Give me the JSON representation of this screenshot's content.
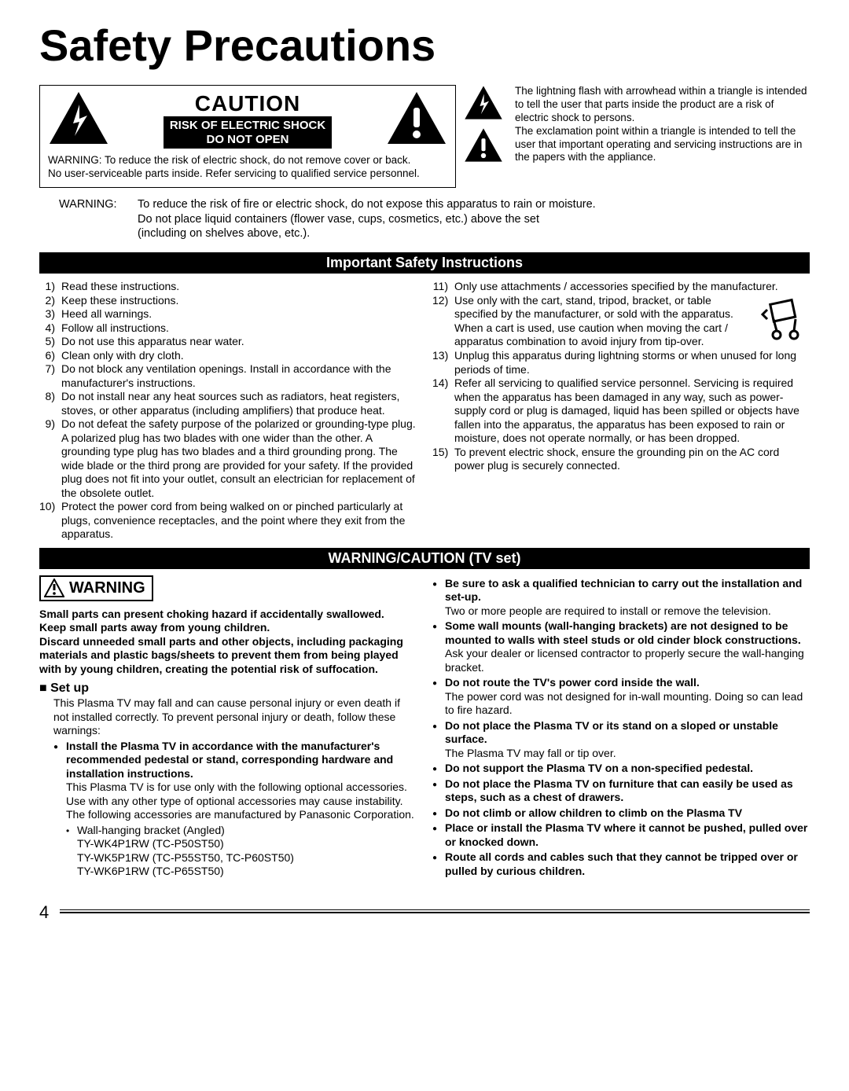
{
  "title": "Safety Precautions",
  "caution": {
    "heading": "CAUTION",
    "bar_lines": [
      "RISK OF ELECTRIC SHOCK",
      "DO NOT OPEN"
    ],
    "note": "WARNING: To reduce the risk of electric shock, do not remove cover or back.\nNo user-serviceable parts inside. Refer servicing to qualified service personnel."
  },
  "symbol_texts": {
    "bolt": "The lightning flash with arrowhead within a triangle is intended to tell the user that parts inside the product are a risk of electric shock to persons.",
    "excl": "The exclamation point within a triangle is intended to tell the user that important operating and servicing instructions are in the papers with the appliance."
  },
  "warning_label": "WARNING:",
  "warning_body": "To reduce the risk of fire or electric shock, do not expose this apparatus to rain or moisture.\nDo not place liquid containers (flower vase, cups, cosmetics, etc.) above the set\n(including on shelves above, etc.).",
  "safety_header": "Important Safety Instructions",
  "safety_left": [
    "Read these instructions.",
    "Keep these instructions.",
    "Heed all warnings.",
    "Follow all instructions.",
    "Do not use this apparatus near water.",
    "Clean only with dry cloth.",
    "Do not block any ventilation openings. Install in accordance with the manufacturer's instructions.",
    "Do not install near any heat sources such as radiators, heat registers, stoves, or other apparatus (including amplifiers) that produce heat.",
    "Do not defeat the safety purpose of the polarized or grounding-type plug. A polarized plug has two blades with one wider than the other. A grounding type plug has two blades and a third grounding prong. The wide blade or the third prong are provided for your safety. If the provided plug does not fit into your outlet, consult an electrician for replacement of the obsolete outlet.",
    "Protect the power cord from being walked on or pinched particularly at plugs, convenience receptacles, and the point where they exit from the apparatus."
  ],
  "safety_right": [
    "Only use attachments / accessories specified by the manufacturer.",
    "Use only with the cart, stand, tripod, bracket, or table specified by the manufacturer, or sold with the apparatus. When a cart is used, use caution when moving the cart / apparatus combination to avoid injury from tip-over.",
    "Unplug this apparatus during lightning storms or when unused for long periods of time.",
    "Refer all servicing to qualified service personnel. Servicing is required when the apparatus has been damaged in any way, such as power-supply cord or plug is damaged, liquid has been spilled or objects have fallen into the apparatus, the apparatus has been exposed to rain or moisture, does not operate normally, or has been dropped.",
    "To prevent electric shock, ensure the grounding pin on the AC cord power plug is securely connected."
  ],
  "tv_header": "WARNING/CAUTION (TV set)",
  "tv_warning_box": "WARNING",
  "choking": "Small parts can present choking hazard if accidentally swallowed.\nKeep small parts away from young children.\nDiscard unneeded small parts and other objects, including packaging materials and plastic bags/sheets to prevent them from being played with by young children, creating the potential risk of suffocation.",
  "setup_heading": "■ Set up",
  "setup_intro": "This Plasma TV may fall and can cause personal injury or even death if not installed correctly. To prevent personal injury or death, follow these warnings:",
  "left_bullets": [
    {
      "title": "Install the Plasma TV in accordance with the manufacturer's recommended pedestal or stand, corresponding hardware and installation instructions.",
      "body": "This Plasma TV is for use only with the following optional accessories. Use with any other type of optional accessories may cause instability. The following accessories are manufactured by Panasonic Corporation.",
      "sub": [
        "Wall-hanging bracket (Angled)",
        "TY-WK4P1RW (TC-P50ST50)",
        "TY-WK5P1RW (TC-P55ST50, TC-P60ST50)",
        "TY-WK6P1RW (TC-P65ST50)"
      ]
    }
  ],
  "right_bullets": [
    {
      "title": "Be sure to ask a qualified technician to carry out the installation and set-up.",
      "body": "Two or more people are required to install or remove the television."
    },
    {
      "title": "Some wall mounts (wall-hanging brackets) are not designed to be mounted to walls with steel studs or old cinder block constructions.",
      "body": "Ask your dealer or licensed contractor to properly secure the wall-hanging bracket."
    },
    {
      "title": "Do not route the TV's power cord inside the wall.",
      "body": "The power cord was not designed for in-wall mounting. Doing so can lead to fire hazard."
    },
    {
      "title": "Do not place the Plasma TV or its stand on a sloped or unstable surface.",
      "body": "The Plasma TV may fall or tip over."
    },
    {
      "title": "Do not support the Plasma TV on a non-specified pedestal.",
      "body": ""
    },
    {
      "title": "Do not place the Plasma TV on furniture that can easily be used as steps, such as a chest of drawers.",
      "body": ""
    },
    {
      "title": "Do not climb or allow children to climb on the Plasma TV",
      "body": ""
    },
    {
      "title": "Place or install the Plasma TV where it cannot be pushed, pulled over or knocked down.",
      "body": ""
    },
    {
      "title": "Route all cords and cables such that they cannot be tripped over or pulled by curious children.",
      "body": ""
    }
  ],
  "page_number": "4"
}
